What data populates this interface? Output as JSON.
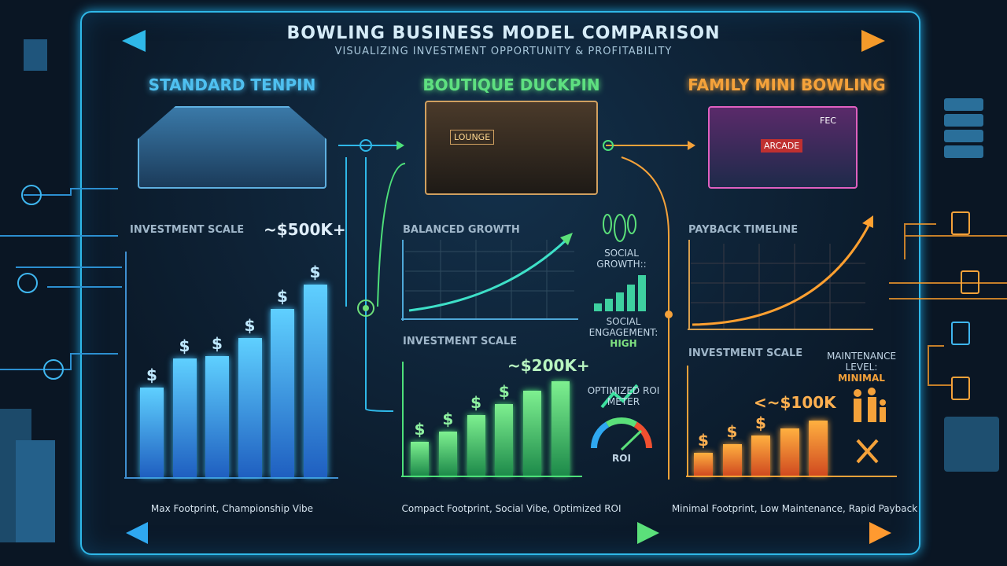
{
  "header": {
    "title": "BOWLING BUSINESS MODEL COMPARISON",
    "subtitle": "VISUALIZING INVESTMENT OPPORTUNITY & PROFITABILITY"
  },
  "colors": {
    "tenpin": "#3fb6ef",
    "duckpin": "#4ee07a",
    "mini": "#f5a23a",
    "frame": "#2fb8e8"
  },
  "columns": [
    {
      "title": "STANDARD TENPIN",
      "chart_label": "INVESTMENT SCALE",
      "value_label": "~$500K+",
      "footer": "Max Footprint, Championship Vibe",
      "bar_levels": [
        0.4,
        0.53,
        0.54,
        0.62,
        0.75,
        0.86
      ],
      "icon": "money-bag-icon"
    },
    {
      "title": "BOUTIQUE DUCKPIN",
      "growth_label": "BALANCED GROWTH",
      "chart_label": "INVESTMENT SCALE",
      "value_label": "~$200K+",
      "footer": "Compact Footprint, Social Vibe, Optimized ROI",
      "bar_levels": [
        0.36,
        0.47,
        0.64,
        0.76,
        0.9,
        1.0
      ],
      "building_signs": [
        "LOUNGE"
      ],
      "side": {
        "social_growth": "SOCIAL GROWTH::",
        "engagement": "SOCIAL ENGAGEMENT:",
        "engagement_value": "HIGH",
        "roi_meter": "OPTIMIZED ROI METER",
        "roi": "ROI"
      }
    },
    {
      "title": "FAMILY MINI BOWLING",
      "payback_label": "PAYBACK TIMELINE",
      "chart_label": "INVESTMENT SCALE",
      "value_label": "<~$100K",
      "footer": "Minimal Footprint, Low Maintenance, Rapid Payback",
      "bar_levels": [
        0.41,
        0.57,
        0.73,
        0.86,
        1.0
      ],
      "building_signs": [
        "ARCADE",
        "FEC"
      ],
      "side": {
        "maintenance": "MAINTENANCE LEVEL:",
        "maintenance_value": "MINIMAL"
      }
    }
  ]
}
